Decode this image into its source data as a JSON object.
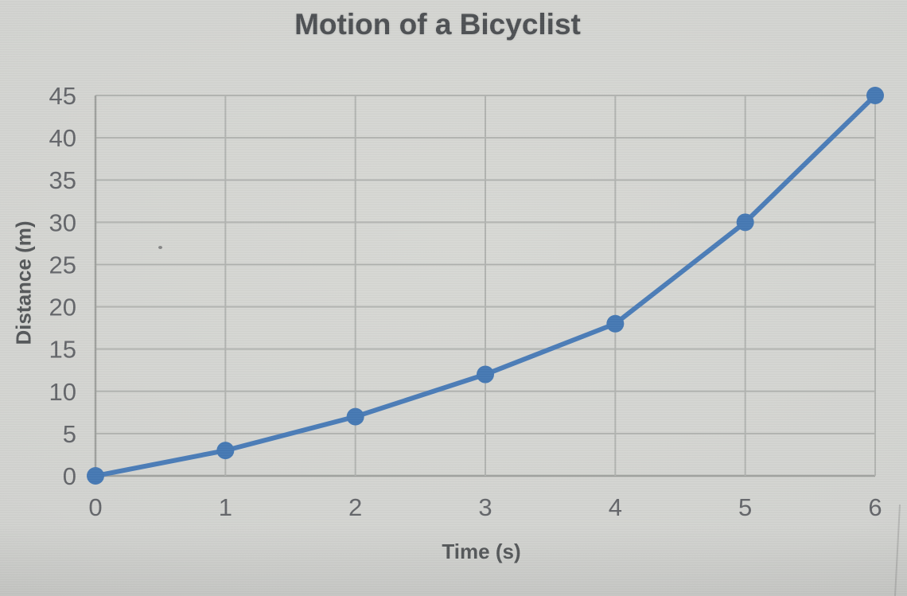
{
  "photo": {
    "background_base": "#d2d3d0"
  },
  "chart_data": {
    "type": "line",
    "title": "Motion of a Bicyclist",
    "xlabel": "Time (s)",
    "ylabel": "Distance (m)",
    "x": [
      0,
      1,
      2,
      3,
      4,
      5,
      6
    ],
    "series": [
      {
        "name": "Distance (m)",
        "values": [
          0,
          3,
          7,
          12,
          18,
          30,
          45
        ]
      }
    ],
    "xlim": [
      0,
      6
    ],
    "ylim": [
      0,
      45
    ],
    "x_ticks": [
      "0",
      "1",
      "2",
      "3",
      "4",
      "5",
      "6"
    ],
    "y_ticks": [
      "0",
      "5",
      "10",
      "15",
      "20",
      "25",
      "30",
      "35",
      "40",
      "45"
    ],
    "grid": true,
    "legend_position": "none",
    "marker": "circle",
    "colors": {
      "line": "#4b7db8",
      "marker": "#4679b4",
      "gridline": "#b2b4b1",
      "axis_line": "#9fa19e",
      "tick_text": "#64666a",
      "title_text": "#4e5154",
      "axis_title_text": "#55585a"
    }
  }
}
